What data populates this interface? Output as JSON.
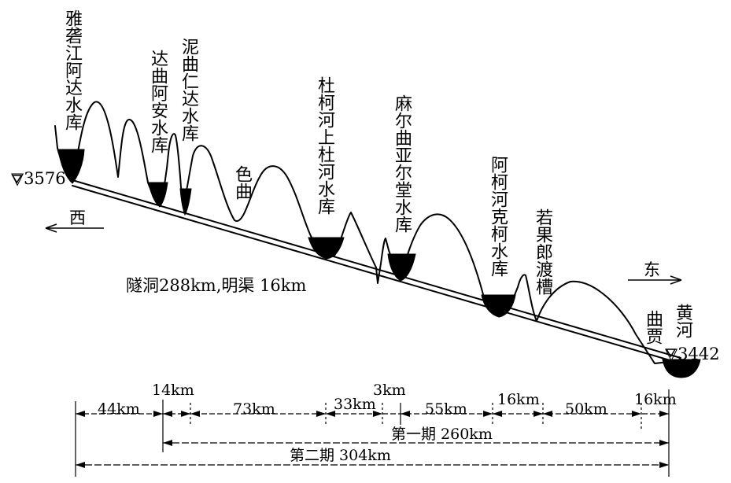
{
  "elevations": {
    "west": "▽3576",
    "east": "▽3442"
  },
  "directions": {
    "west": "西",
    "east": "东"
  },
  "route_note": "隧洞288km,明渠 16km",
  "reservoirs": {
    "yalong": "雅砻江阿达水库",
    "daqu": "达曲阿安水库",
    "niqu": "泥曲仁达水库",
    "duke": "杜柯河上杜河水库",
    "maerqu": "麻尔曲亚尔堂水库",
    "ake": "阿柯河克柯水库"
  },
  "features": {
    "sequ": "色曲",
    "ruoguolang": "若果郎渡槽",
    "qujia": "曲贾",
    "huanghe": "黄河"
  },
  "segments": [
    "44km",
    "14km",
    "73km",
    "33km",
    "3km",
    "55km",
    "16km",
    "50km",
    "16km"
  ],
  "phases": {
    "phase1": "第一期 260km",
    "phase2": "第二期 304km"
  },
  "colors": {
    "ink": "#000000",
    "background": "#ffffff"
  }
}
